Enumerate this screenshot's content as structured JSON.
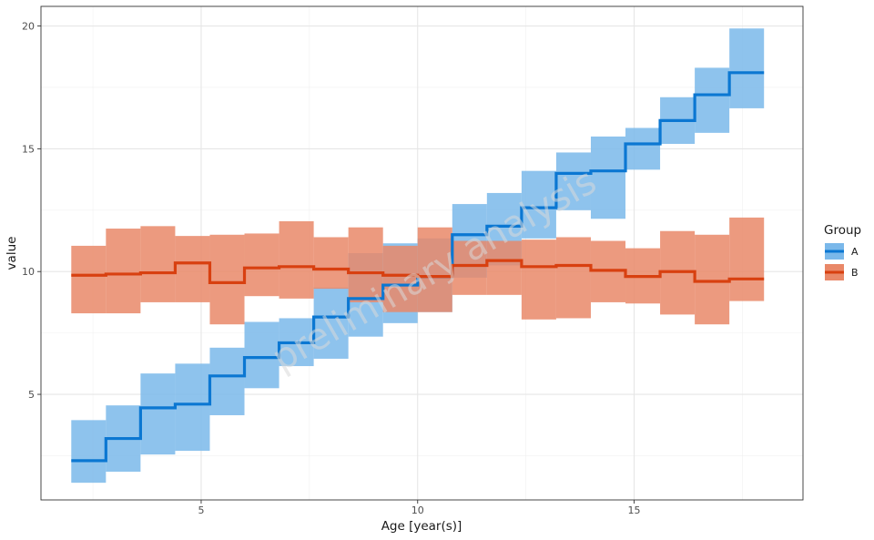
{
  "chart_data": {
    "type": "step",
    "xlabel": "Age [year(s)]",
    "ylabel": "value",
    "xlim": [
      1.3,
      18.9
    ],
    "ylim": [
      0.7,
      20.8
    ],
    "xticks": [
      5,
      10,
      15
    ],
    "yticks": [
      5,
      10,
      15,
      20
    ],
    "grid": true,
    "legend": {
      "title": "Group",
      "position": "right"
    },
    "watermark": "preliminary analysis",
    "series": [
      {
        "name": "A",
        "color": "#0b77d2",
        "ribbon_color": "#7ab8ea",
        "x": [
          2.0,
          2.8,
          3.6,
          4.4,
          5.2,
          6.0,
          6.8,
          7.6,
          8.4,
          9.2,
          10.0,
          10.8,
          11.6,
          12.4,
          13.2,
          14.0,
          14.8,
          15.6,
          16.4,
          17.2,
          18.0
        ],
        "y": [
          2.3,
          3.2,
          4.45,
          4.6,
          5.75,
          6.5,
          7.1,
          8.15,
          8.9,
          9.45,
          9.8,
          11.5,
          11.85,
          12.6,
          14.0,
          14.1,
          15.2,
          16.15,
          17.2,
          18.1,
          18.1
        ],
        "lower": [
          1.4,
          1.85,
          2.55,
          2.7,
          4.15,
          5.25,
          6.15,
          6.45,
          7.35,
          7.9,
          8.35,
          9.75,
          10.25,
          11.35,
          12.5,
          12.15,
          14.15,
          15.2,
          15.65,
          16.65,
          16.65
        ],
        "upper": [
          3.95,
          4.55,
          5.85,
          6.25,
          6.9,
          7.95,
          8.1,
          9.35,
          10.75,
          11.15,
          11.35,
          12.75,
          13.2,
          14.1,
          14.85,
          15.5,
          15.85,
          17.1,
          18.3,
          19.9,
          19.9
        ]
      },
      {
        "name": "B",
        "color": "#d84010",
        "ribbon_color": "#e98868",
        "x": [
          2.0,
          2.8,
          3.6,
          4.4,
          5.2,
          6.0,
          6.8,
          7.6,
          8.4,
          9.2,
          10.0,
          10.8,
          11.6,
          12.4,
          13.2,
          14.0,
          14.8,
          15.6,
          16.4,
          17.2,
          18.0
        ],
        "y": [
          9.85,
          9.9,
          9.95,
          10.35,
          9.55,
          10.15,
          10.2,
          10.1,
          9.95,
          9.85,
          9.8,
          10.25,
          10.45,
          10.2,
          10.25,
          10.05,
          9.8,
          10.0,
          9.6,
          9.7,
          9.7
        ],
        "lower": [
          8.3,
          8.3,
          8.75,
          8.75,
          7.85,
          9.0,
          8.9,
          9.3,
          8.75,
          8.35,
          8.35,
          9.05,
          9.05,
          8.05,
          8.1,
          8.75,
          8.7,
          8.25,
          7.85,
          8.8,
          8.8
        ],
        "upper": [
          11.05,
          11.75,
          11.85,
          11.45,
          11.5,
          11.55,
          12.05,
          11.4,
          11.8,
          11.05,
          11.8,
          11.25,
          11.25,
          11.3,
          11.4,
          11.25,
          10.95,
          11.65,
          11.5,
          12.2,
          12.2
        ]
      }
    ]
  }
}
